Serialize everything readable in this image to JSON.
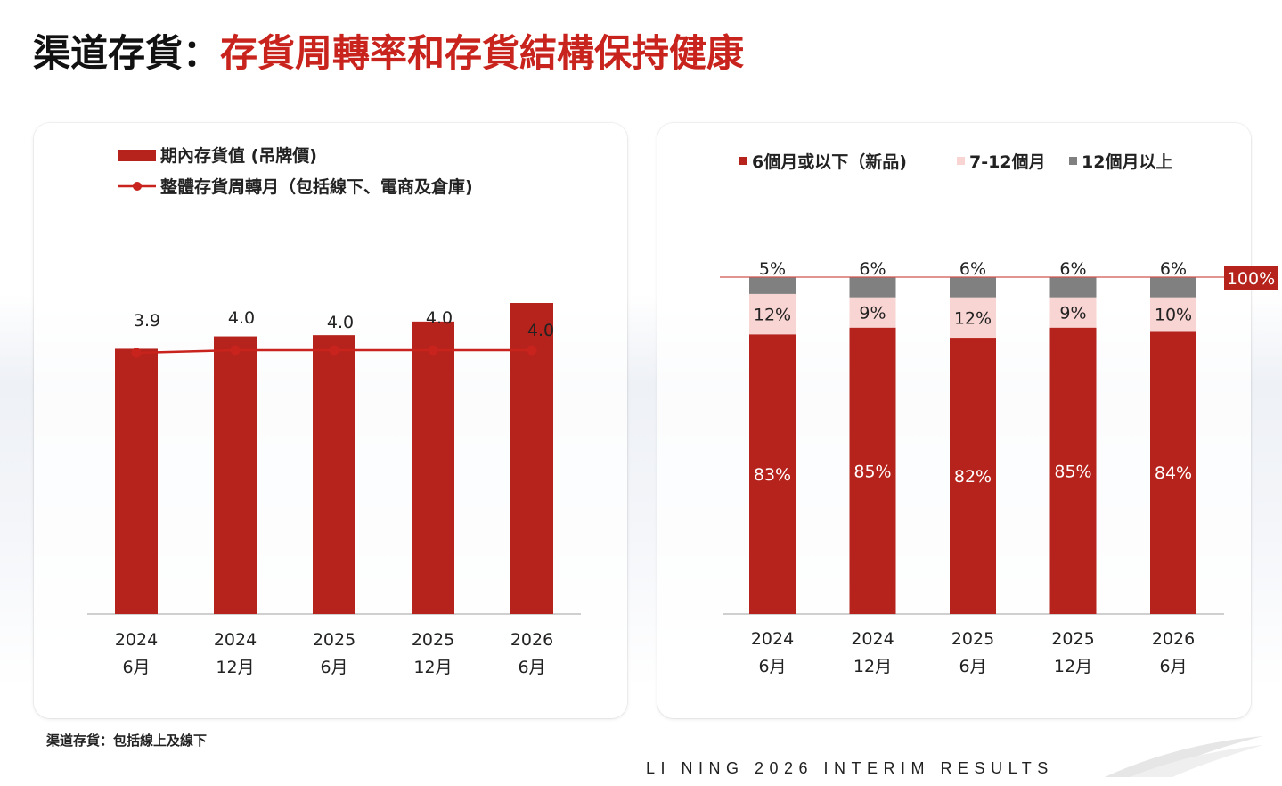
{
  "title": {
    "prefix": "渠道存貨：",
    "main": "存貨周轉率和存貨結構保持健康"
  },
  "colors": {
    "red": "#b5231c",
    "pink": "#f8d4d2",
    "gray": "#808080",
    "title_red": "#c8231d"
  },
  "chart_data": [
    {
      "type": "bar",
      "legend": {
        "bar": "期內存貨值 (吊牌價)",
        "line": "整體存貨周轉月（包括線下、電商及倉庫)"
      },
      "categories": [
        [
          "2024",
          "6月"
        ],
        [
          "2024",
          "12月"
        ],
        [
          "2025",
          "6月"
        ],
        [
          "2025",
          "12月"
        ],
        [
          "2026",
          "6月"
        ]
      ],
      "series": [
        {
          "name": "期內存貨值 (吊牌價)",
          "type": "bar",
          "values": [
            214,
            224,
            225,
            236,
            251
          ]
        },
        {
          "name": "整體存貨周轉月（包括線下、電商及倉庫)",
          "type": "line",
          "values": [
            3.9,
            4.0,
            4.0,
            4.0,
            4.0
          ],
          "labels": [
            "3.9",
            "4.0",
            "4.0",
            "4.0",
            "4.0"
          ]
        }
      ],
      "y_axis_shown": false,
      "grid": false
    },
    {
      "type": "bar",
      "stacked": true,
      "legend": [
        "6個月或以下（新品)",
        "7-12個月",
        "12個月以上"
      ],
      "categories": [
        [
          "2024",
          "6月"
        ],
        [
          "2024",
          "12月"
        ],
        [
          "2025",
          "6月"
        ],
        [
          "2025",
          "12月"
        ],
        [
          "2026",
          "6月"
        ]
      ],
      "series": [
        {
          "name": "6個月或以下（新品)",
          "values": [
            83,
            85,
            82,
            85,
            84
          ],
          "labels": [
            "83%",
            "85%",
            "82%",
            "85%",
            "84%"
          ]
        },
        {
          "name": "7-12個月",
          "values": [
            12,
            9,
            12,
            9,
            10
          ],
          "labels": [
            "12%",
            "9%",
            "12%",
            "9%",
            "10%"
          ]
        },
        {
          "name": "12個月以上",
          "values": [
            5,
            6,
            6,
            6,
            6
          ],
          "labels": [
            "5%",
            "6%",
            "6%",
            "6%",
            "6%"
          ]
        }
      ],
      "reference_line": {
        "value": 100,
        "label": "100%"
      },
      "grid": false
    }
  ],
  "footnote": "渠道存貨：包括線上及線下",
  "footer": "LI NING 2026 INTERIM RESULTS"
}
